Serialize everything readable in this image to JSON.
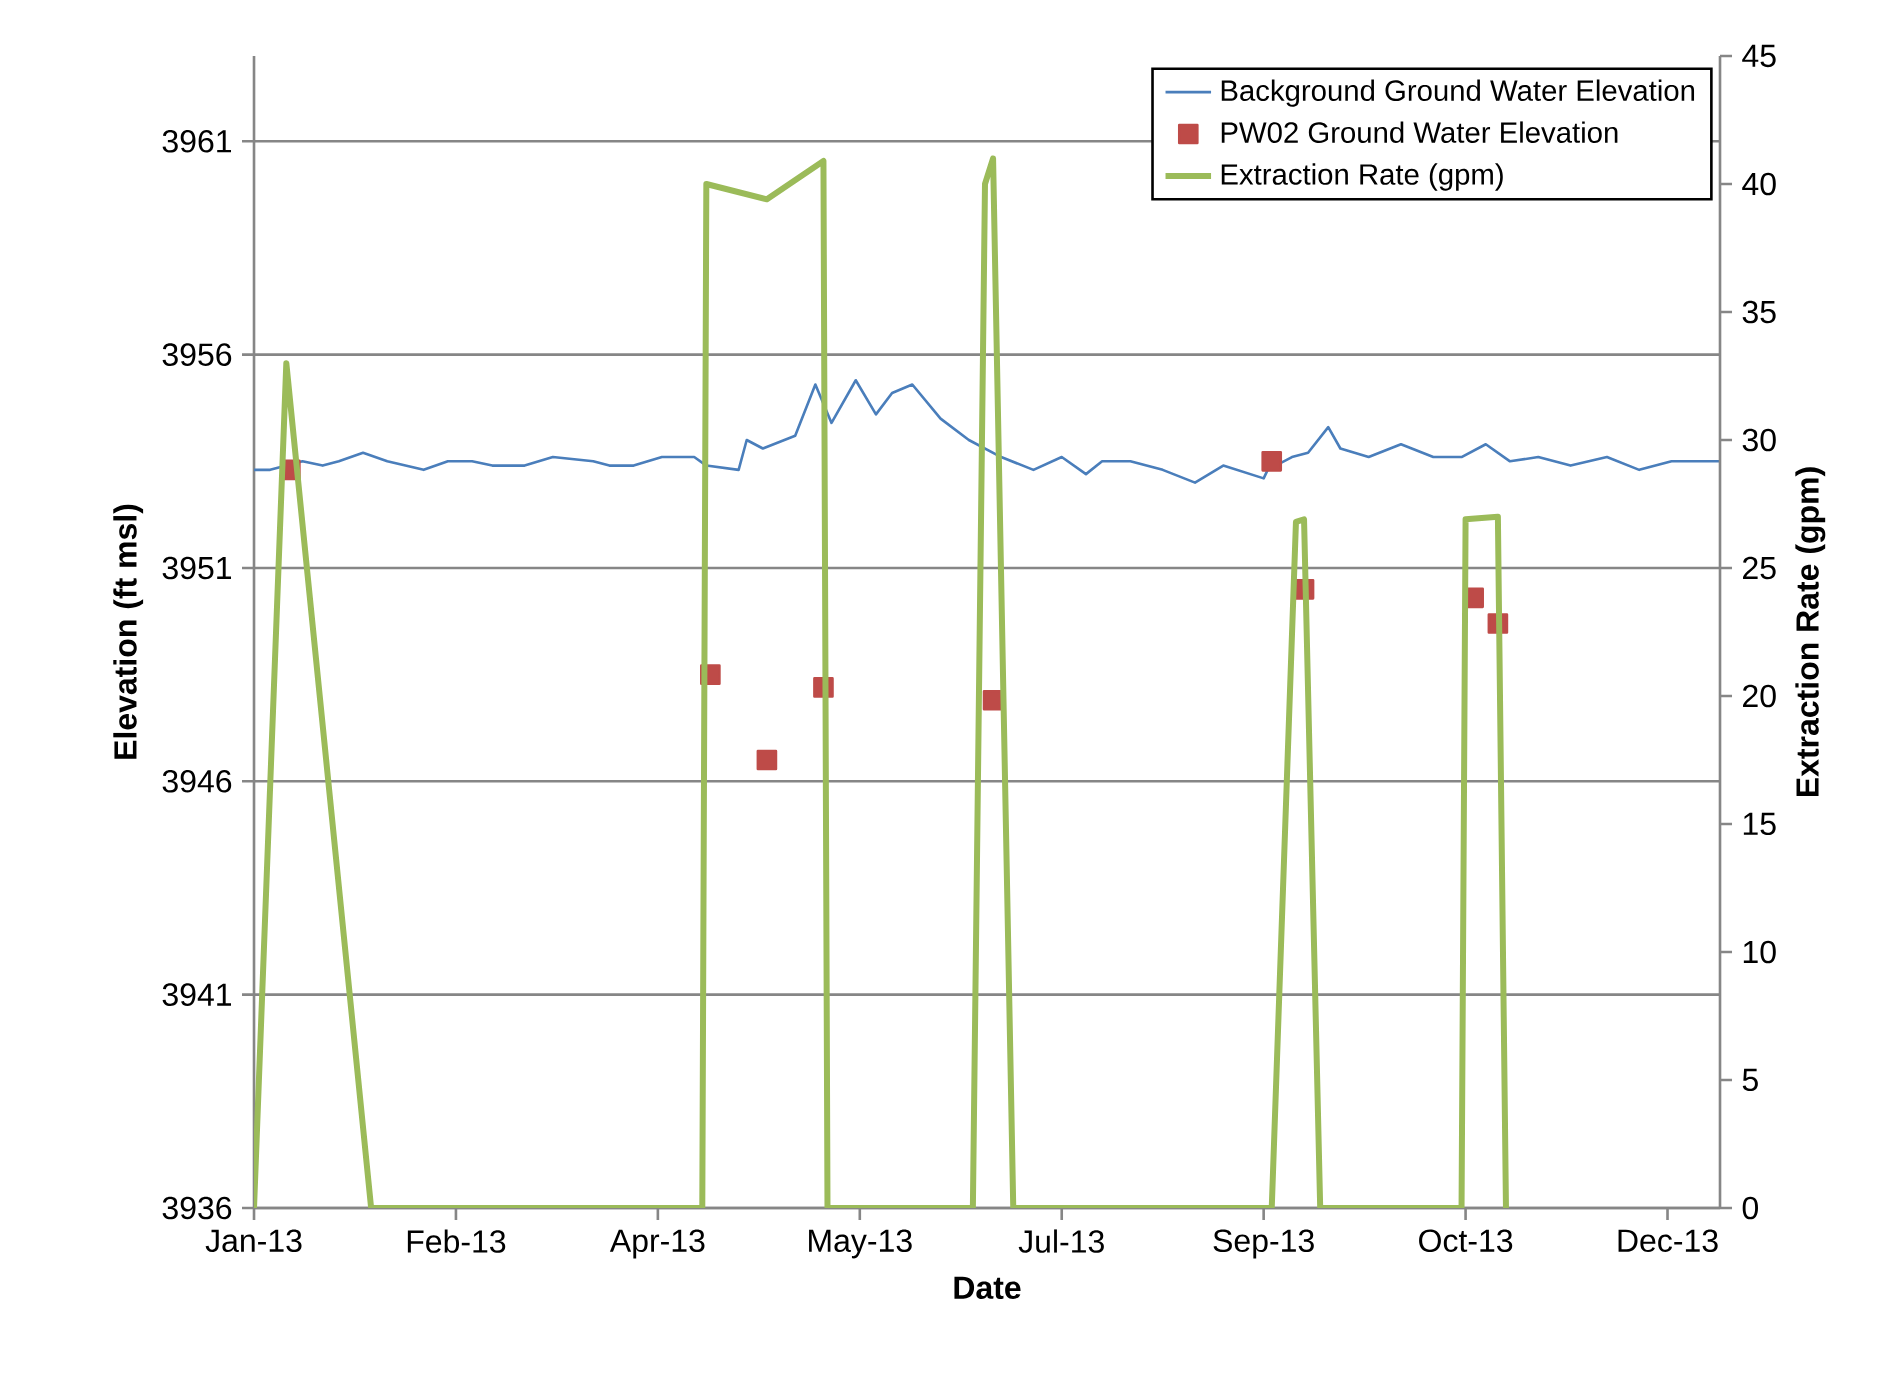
{
  "chart_data": {
    "type": "line",
    "xlabel": "Date",
    "ylabel": "Elevation (ft msl)",
    "y2label": "Extraction Rate (gpm)",
    "xlim": [
      "2013-01-01",
      "2013-12-30"
    ],
    "xticks": [
      {
        "value": "2013-01-01",
        "label": "Jan-13"
      },
      {
        "value": "2013-02-20",
        "label": "Feb-13"
      },
      {
        "value": "2013-04-11",
        "label": "Apr-13"
      },
      {
        "value": "2013-05-31",
        "label": "May-13"
      },
      {
        "value": "2013-07-20",
        "label": "Jul-13"
      },
      {
        "value": "2013-09-08",
        "label": "Sep-13"
      },
      {
        "value": "2013-10-28",
        "label": "Oct-13"
      },
      {
        "value": "2013-12-17",
        "label": "Dec-13"
      }
    ],
    "ylim": [
      3936,
      3963
    ],
    "yticks": [
      3936,
      3941,
      3946,
      3951,
      3956,
      3961
    ],
    "y2lim": [
      0,
      45
    ],
    "y2ticks": [
      0,
      5,
      10,
      15,
      20,
      25,
      30,
      35,
      40,
      45
    ],
    "grid": "y",
    "legend": "top right",
    "series": [
      {
        "name": "Background Ground Water Elevation",
        "marker": "none",
        "color": "#4a7ebb",
        "x": [
          "2013-01-01",
          "2013-01-05",
          "2013-01-09",
          "2013-01-13",
          "2013-01-18",
          "2013-01-22",
          "2013-01-28",
          "2013-02-03",
          "2013-02-12",
          "2013-02-18",
          "2013-02-24",
          "2013-03-01",
          "2013-03-09",
          "2013-03-16",
          "2013-03-26",
          "2013-03-30",
          "2013-04-05",
          "2013-04-12",
          "2013-04-20",
          "2013-04-23",
          "2013-05-01",
          "2013-05-03",
          "2013-05-07",
          "2013-05-15",
          "2013-05-20",
          "2013-05-24",
          "2013-05-30",
          "2013-06-04",
          "2013-06-08",
          "2013-06-13",
          "2013-06-20",
          "2013-06-27",
          "2013-07-05",
          "2013-07-13",
          "2013-07-20",
          "2013-07-26",
          "2013-07-30",
          "2013-08-06",
          "2013-08-14",
          "2013-08-22",
          "2013-08-29",
          "2013-09-08",
          "2013-09-09",
          "2013-09-15",
          "2013-09-19",
          "2013-09-24",
          "2013-09-27",
          "2013-10-04",
          "2013-10-12",
          "2013-10-20",
          "2013-10-27",
          "2013-11-02",
          "2013-11-08",
          "2013-11-15",
          "2013-11-23",
          "2013-12-02",
          "2013-12-10",
          "2013-12-18",
          "2013-12-25",
          "2013-12-30"
        ],
        "values": [
          3953.3,
          3953.3,
          3953.4,
          3953.5,
          3953.4,
          3953.5,
          3953.7,
          3953.5,
          3953.3,
          3953.5,
          3953.5,
          3953.4,
          3953.4,
          3953.6,
          3953.5,
          3953.4,
          3953.4,
          3953.6,
          3953.6,
          3953.4,
          3953.3,
          3954.0,
          3953.8,
          3954.1,
          3955.3,
          3954.4,
          3955.4,
          3954.6,
          3955.1,
          3955.3,
          3954.5,
          3954.0,
          3953.6,
          3953.3,
          3953.6,
          3953.2,
          3953.5,
          3953.5,
          3953.3,
          3953.0,
          3953.4,
          3953.1,
          3953.3,
          3953.6,
          3953.7,
          3954.3,
          3953.8,
          3953.6,
          3953.9,
          3953.6,
          3953.6,
          3953.9,
          3953.5,
          3953.6,
          3953.4,
          3953.6,
          3953.3,
          3953.5,
          3953.5,
          3953.5
        ]
      },
      {
        "name": "PW02 Ground Water Elevation",
        "type": "scatter",
        "marker": "square",
        "color": "#be4b48",
        "x": [
          "2013-01-10",
          "2013-04-24",
          "2013-05-08",
          "2013-05-22",
          "2013-07-03",
          "2013-09-10",
          "2013-09-18",
          "2013-10-30",
          "2013-11-05"
        ],
        "values": [
          3953.3,
          3948.5,
          3946.5,
          3948.2,
          3947.9,
          3953.5,
          3950.5,
          3950.3,
          3949.7
        ]
      },
      {
        "name": "Extraction Rate (gpm)",
        "marker": "none",
        "axis": "y2",
        "color": "#9bbb59",
        "x": [
          "2013-01-01",
          "2013-01-09",
          "2013-01-30",
          "2013-04-22",
          "2013-04-23",
          "2013-05-08",
          "2013-05-22",
          "2013-05-23",
          "2013-06-28",
          "2013-07-01",
          "2013-07-03",
          "2013-07-08",
          "2013-09-10",
          "2013-09-16",
          "2013-09-18",
          "2013-09-22",
          "2013-10-27",
          "2013-10-28",
          "2013-11-05",
          "2013-11-07"
        ],
        "values": [
          0,
          33,
          0,
          0,
          40,
          39.4,
          40.9,
          0,
          0,
          40,
          41,
          0,
          0,
          26.8,
          26.9,
          0,
          0,
          26.9,
          27,
          0
        ]
      }
    ]
  }
}
